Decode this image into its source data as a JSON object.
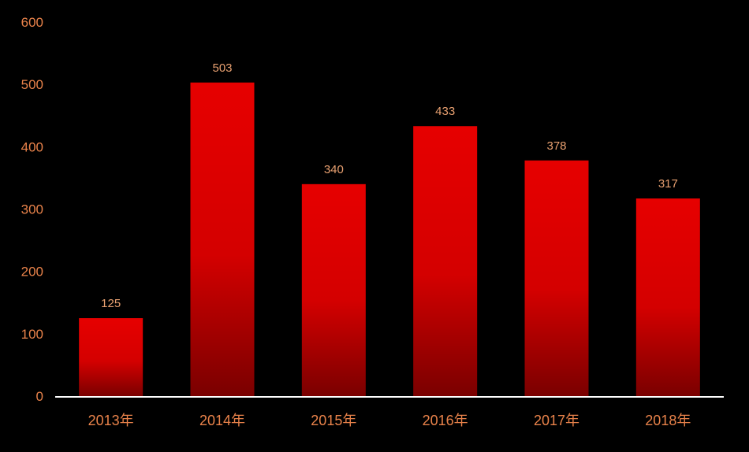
{
  "chart_data": {
    "type": "bar",
    "categories": [
      "2013年",
      "2014年",
      "2015年",
      "2016年",
      "2017年",
      "2018年"
    ],
    "values": [
      125,
      503,
      340,
      433,
      378,
      317
    ],
    "title": "",
    "xlabel": "",
    "ylabel": "",
    "ylim": [
      0,
      600
    ],
    "yticks": [
      0,
      100,
      200,
      300,
      400,
      500,
      600
    ],
    "grid": false,
    "legend": "none",
    "data_labels": true
  },
  "colors": {
    "background": "#000000",
    "bar_top": "#e60000",
    "bar_bottom": "#7a0000",
    "axis_text": "#e8824a",
    "data_label_text": "#e8a070",
    "baseline": "#ffffff"
  }
}
